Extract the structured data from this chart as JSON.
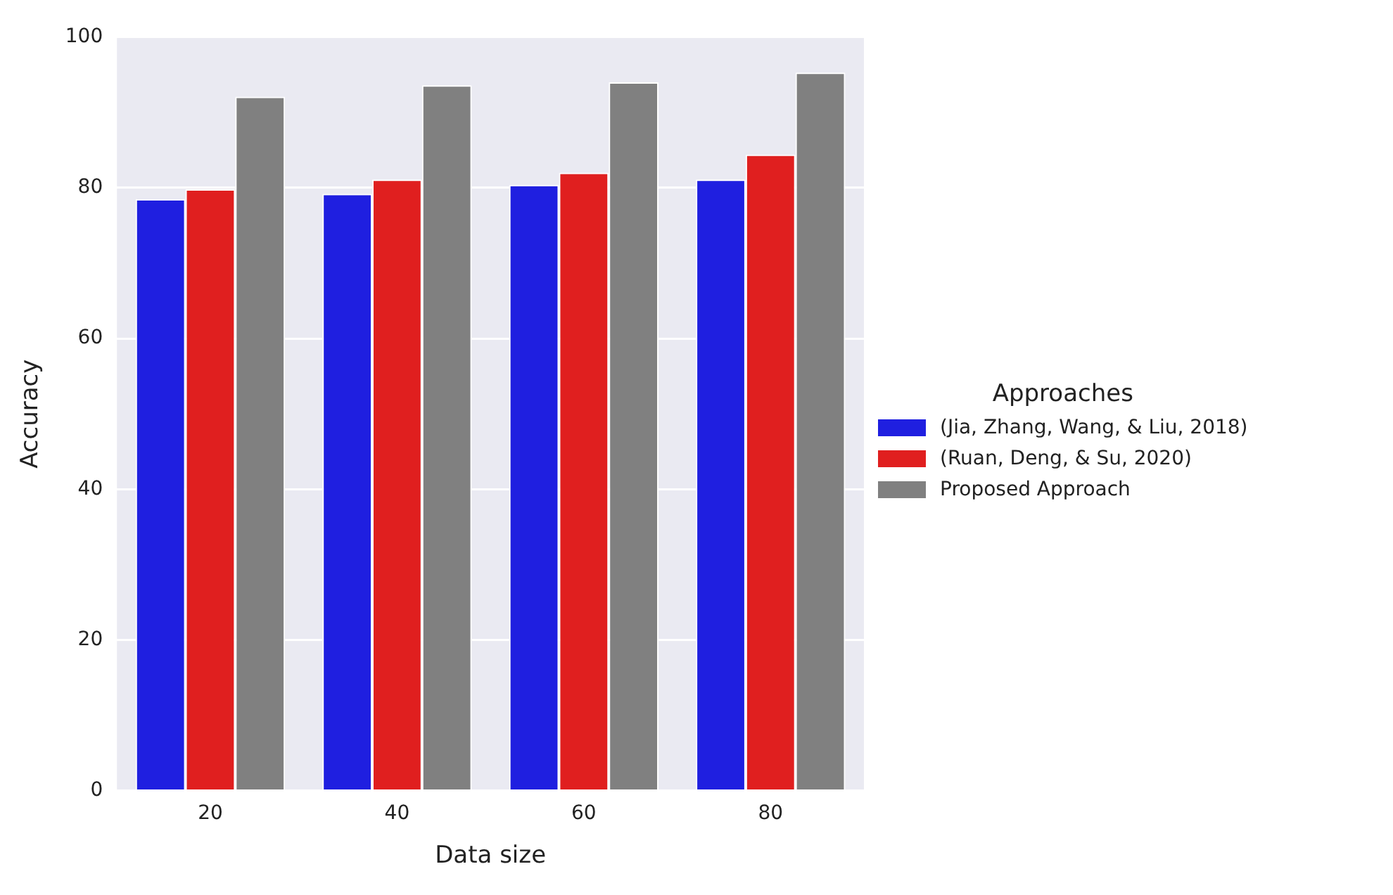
{
  "chart_data": {
    "type": "bar",
    "xlabel": "Data size",
    "ylabel": "Accuracy",
    "legend_title": "Approaches",
    "categories": [
      "20",
      "40",
      "60",
      "80"
    ],
    "series": [
      {
        "name": "(Jia, Zhang, Wang, & Liu, 2018)",
        "color": "#1f1fe0",
        "values": [
          78.5,
          79.2,
          80.4,
          81.1
        ]
      },
      {
        "name": "(Ruan, Deng, & Su, 2020)",
        "color": "#e01f1f",
        "values": [
          79.8,
          81.1,
          82.0,
          84.4
        ]
      },
      {
        "name": "Proposed Approach",
        "color": "#808080",
        "values": [
          92.1,
          93.6,
          94.0,
          95.3
        ]
      }
    ],
    "ylim": [
      0,
      100
    ],
    "yticks": [
      0,
      20,
      40,
      60,
      80,
      100
    ],
    "grid": "y",
    "legend": "right"
  }
}
